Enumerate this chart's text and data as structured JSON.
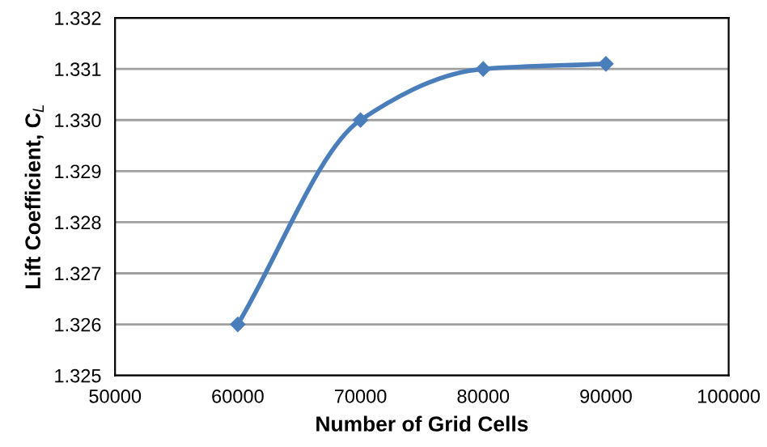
{
  "chart_data": {
    "type": "line",
    "xlabel": "Number of Grid Cells",
    "ylabel": "Lift Coefficient, C$_{L}$",
    "x": [
      60000,
      70000,
      80000,
      90000
    ],
    "series": [
      {
        "color": "#4a7ebb",
        "values": [
          1.326,
          1.33,
          1.331,
          1.3311
        ]
      }
    ],
    "xlim": [
      50000,
      100000
    ],
    "xticks": [
      50000,
      60000,
      70000,
      80000,
      90000,
      100000
    ],
    "ylim": [
      1.325,
      1.332
    ],
    "yticks": [
      {
        "value": 1.325,
        "label": "1.325"
      },
      {
        "value": 1.326,
        "label": "1.326"
      },
      {
        "value": 1.327,
        "label": "1.327"
      },
      {
        "value": 1.328,
        "label": "1.328"
      },
      {
        "value": 1.329,
        "label": "1.329"
      },
      {
        "value": 1.33,
        "label": "1.330"
      },
      {
        "value": 1.331,
        "label": "1.331"
      },
      {
        "value": 1.332,
        "label": "1.332"
      }
    ],
    "grid": "y",
    "marker": "diamond",
    "line_style": "solid",
    "legend": false
  }
}
